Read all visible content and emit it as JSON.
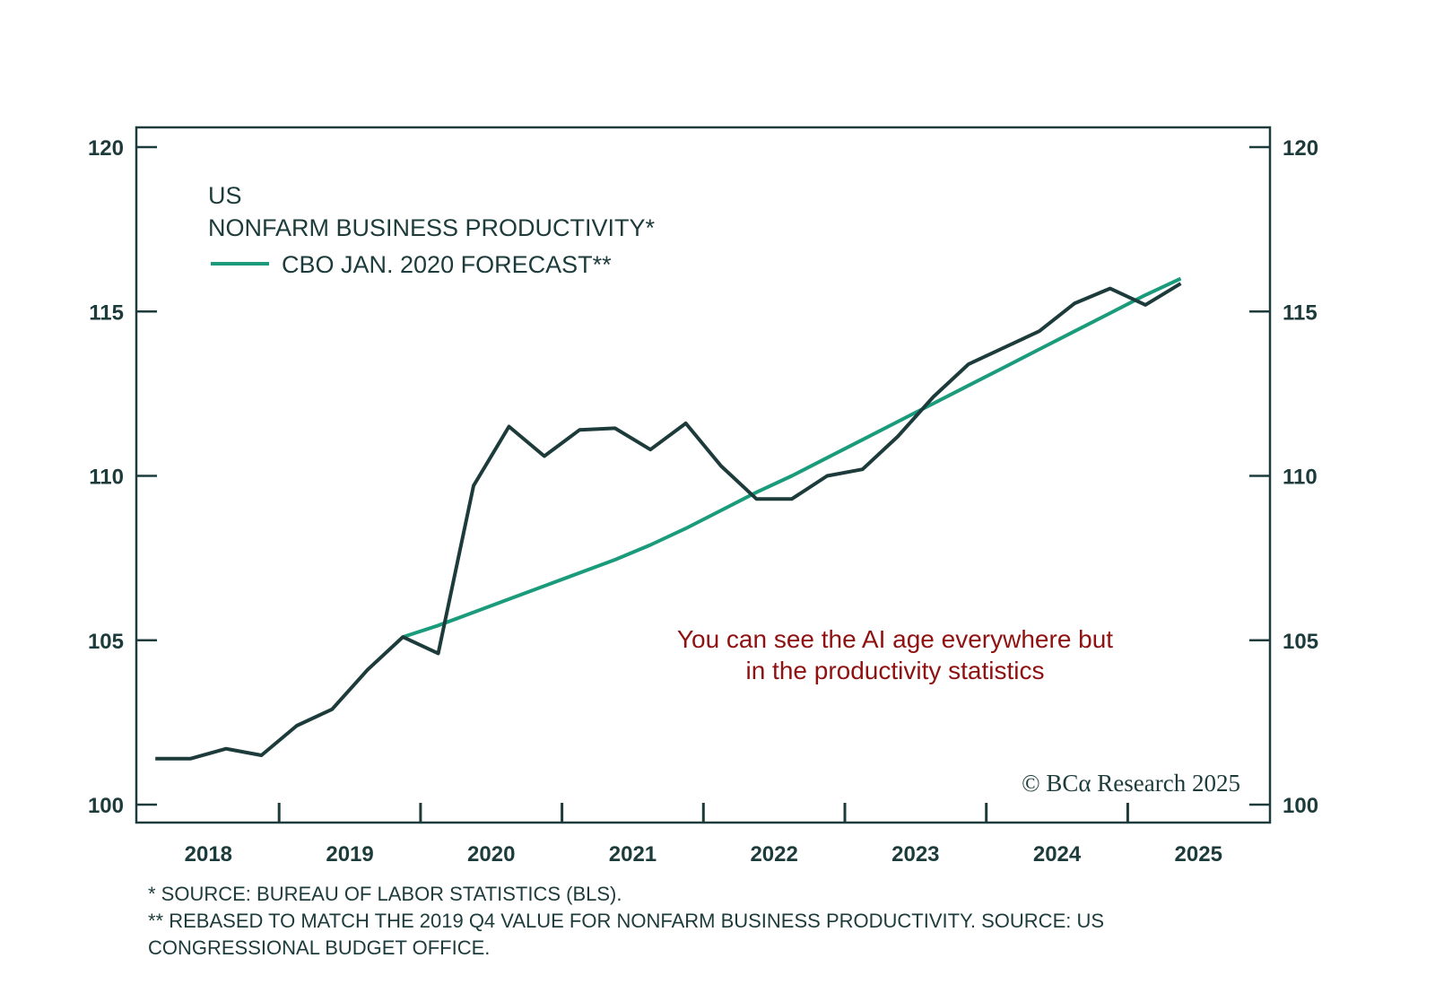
{
  "chart_data": {
    "type": "line",
    "title": "US",
    "subtitle": "NONFARM BUSINESS PRODUCTIVITY*",
    "x_tick_labels": [
      "2018",
      "2019",
      "2020",
      "2021",
      "2022",
      "2023",
      "2024",
      "2025"
    ],
    "y_ticks": [
      100,
      105,
      110,
      115,
      120
    ],
    "y_tick_labels": [
      "100",
      "105",
      "110",
      "115",
      "120"
    ],
    "ylim": [
      100,
      120
    ],
    "xlim": [
      "2018-01",
      "2025-12"
    ],
    "grid": false,
    "dual_y_axis": true,
    "series": [
      {
        "name": "NONFARM BUSINESS PRODUCTIVITY*",
        "color": "#1d3b3b",
        "x": [
          "2018Q1",
          "2018Q2",
          "2018Q3",
          "2018Q4",
          "2019Q1",
          "2019Q2",
          "2019Q3",
          "2019Q4",
          "2020Q1",
          "2020Q2",
          "2020Q3",
          "2020Q4",
          "2021Q1",
          "2021Q2",
          "2021Q3",
          "2021Q4",
          "2022Q1",
          "2022Q2",
          "2022Q3",
          "2022Q4",
          "2023Q1",
          "2023Q2",
          "2023Q3",
          "2023Q4",
          "2024Q1",
          "2024Q2",
          "2024Q3",
          "2024Q4",
          "2025Q1",
          "2025Q2"
        ],
        "values": [
          101.4,
          101.4,
          101.7,
          101.5,
          102.4,
          102.9,
          104.1,
          105.1,
          104.6,
          109.7,
          111.5,
          110.6,
          111.4,
          111.45,
          110.8,
          111.6,
          110.3,
          109.3,
          109.3,
          110.0,
          110.2,
          111.2,
          112.4,
          113.4,
          113.9,
          114.4,
          115.25,
          115.7,
          115.2,
          115.85
        ]
      },
      {
        "name": "CBO JAN. 2020 FORECAST**",
        "color": "#1a9b7b",
        "x": [
          "2019Q4",
          "2020Q1",
          "2020Q2",
          "2020Q3",
          "2020Q4",
          "2021Q1",
          "2021Q2",
          "2021Q3",
          "2021Q4",
          "2022Q1",
          "2022Q2",
          "2022Q3",
          "2022Q4",
          "2023Q1",
          "2023Q2",
          "2023Q3",
          "2023Q4",
          "2024Q1",
          "2024Q2",
          "2024Q3",
          "2024Q4",
          "2025Q1",
          "2025Q2"
        ],
        "values": [
          105.1,
          105.45,
          105.85,
          106.25,
          106.65,
          107.05,
          107.45,
          107.9,
          108.4,
          108.95,
          109.5,
          110.0,
          110.55,
          111.1,
          111.65,
          112.2,
          112.75,
          113.3,
          113.85,
          114.4,
          114.95,
          115.5,
          116.0
        ]
      }
    ],
    "legend": {
      "title_line1": "US",
      "title_line2": "NONFARM BUSINESS PRODUCTIVITY*",
      "forecast_label": "CBO JAN. 2020 FORECAST**",
      "placement": "top-left"
    },
    "annotation": {
      "line1": "You can see the AI age everywhere but",
      "line2": "in the productivity statistics",
      "color": "#8f1111"
    },
    "copyright": "© BCα Research 2025"
  },
  "footnotes": {
    "line1": "* SOURCE: BUREAU OF LABOR STATISTICS (BLS).",
    "line2": "** REBASED TO MATCH THE 2019 Q4 VALUE FOR NONFARM BUSINESS PRODUCTIVITY. SOURCE: US",
    "line3": "CONGRESSIONAL BUDGET OFFICE."
  }
}
